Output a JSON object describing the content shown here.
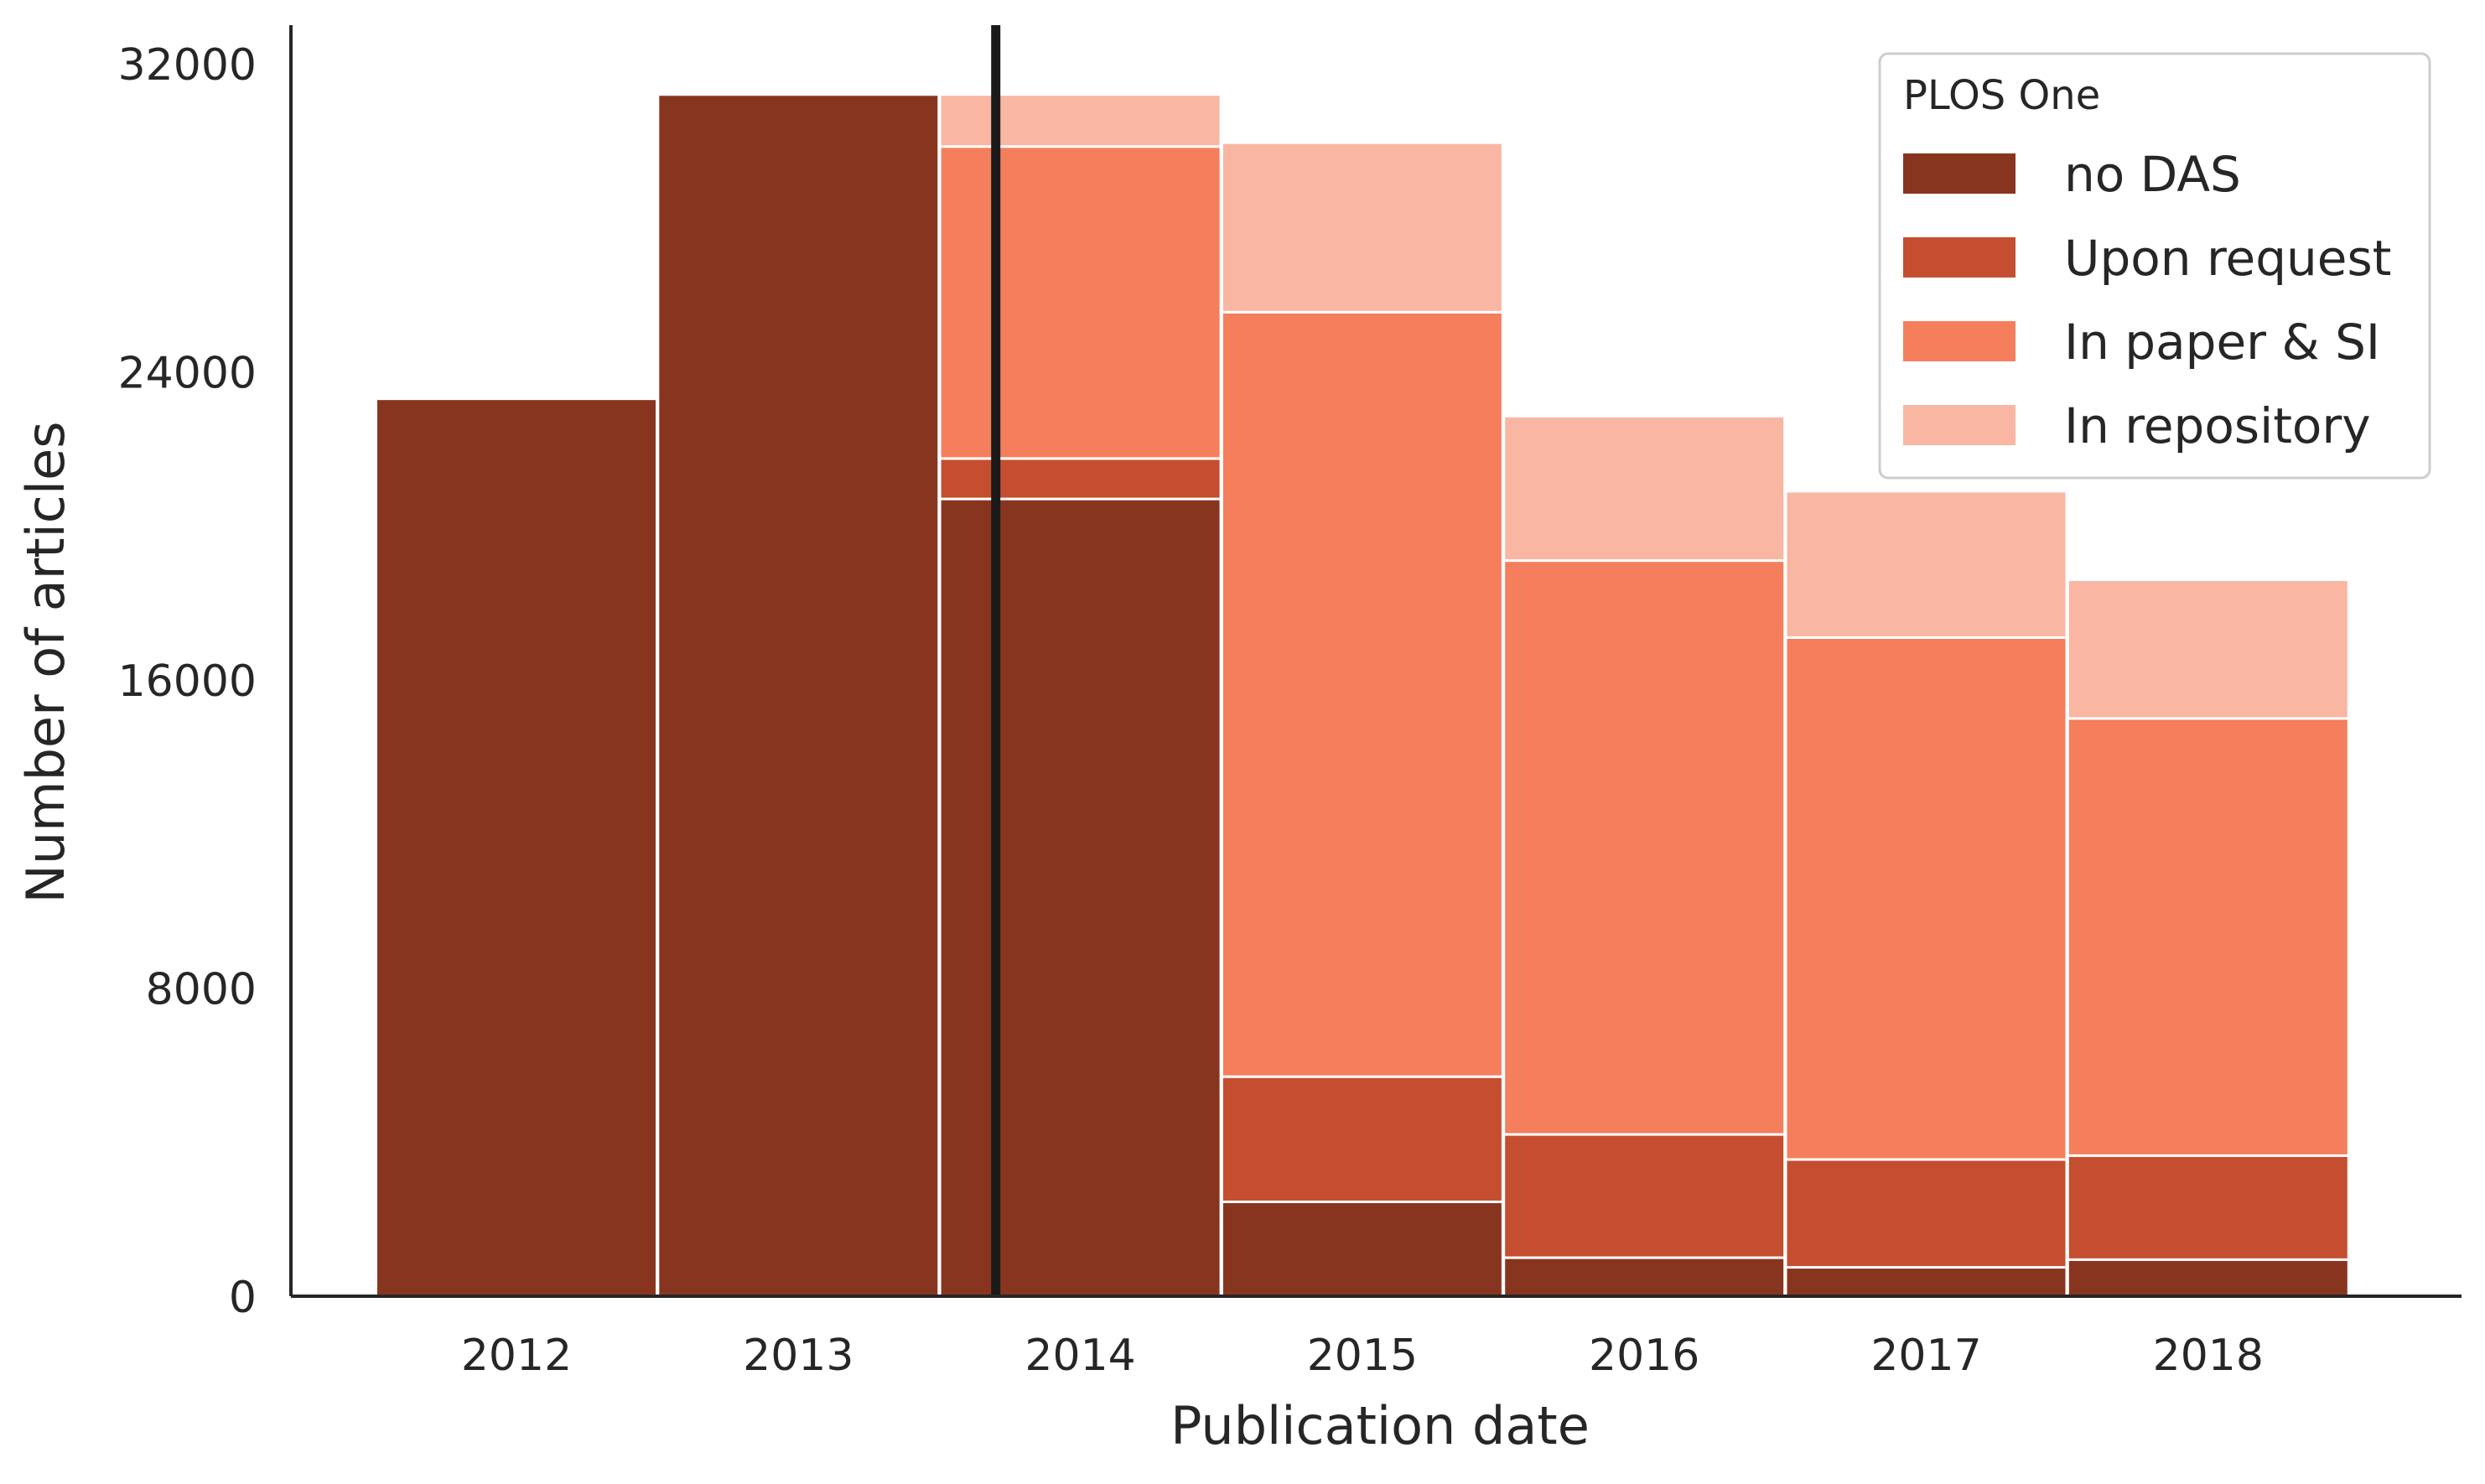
{
  "chart_data": {
    "type": "bar",
    "stacked": true,
    "xlabel": "Publication date",
    "ylabel": "Number of articles",
    "categories": [
      "2012",
      "2013",
      "2014",
      "2015",
      "2016",
      "2017",
      "2018"
    ],
    "ylim": [
      0,
      33000
    ],
    "yticks": [
      "0",
      "8000",
      "16000",
      "24000",
      "32000"
    ],
    "grid": false,
    "legend": {
      "title": "PLOS One",
      "position": "top-right"
    },
    "vertical_marker": {
      "x": 2013.7,
      "color": "#1a1a1a"
    },
    "series": [
      {
        "name": "no DAS",
        "color": "#883520",
        "values": [
          23300,
          31200,
          20700,
          2450,
          1000,
          750,
          950
        ]
      },
      {
        "name": "Upon request",
        "color": "#c44e2f",
        "values": [
          0,
          0,
          1050,
          3250,
          3200,
          2800,
          2700
        ]
      },
      {
        "name": "In paper & SI",
        "color": "#f57e5c",
        "values": [
          0,
          0,
          8100,
          19850,
          14900,
          13550,
          11350
        ]
      },
      {
        "name": "In repository",
        "color": "#f9b6a3",
        "values": [
          0,
          0,
          1350,
          4400,
          3750,
          3800,
          3600
        ]
      }
    ]
  }
}
